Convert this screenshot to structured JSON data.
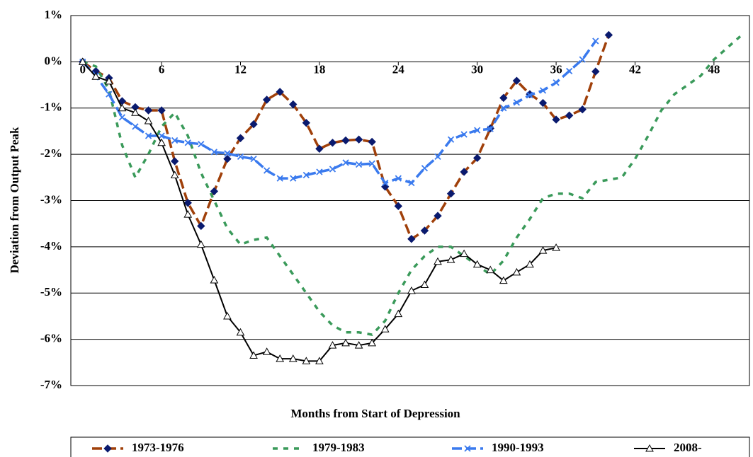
{
  "chart_data": {
    "type": "line",
    "xlabel": "Months from Start of Depression",
    "ylabel": "Deviation from Output Peak",
    "x": [
      0,
      1,
      2,
      3,
      4,
      5,
      6,
      7,
      8,
      9,
      10,
      11,
      12,
      13,
      14,
      15,
      16,
      17,
      18,
      19,
      20,
      21,
      22,
      23,
      24,
      25,
      26,
      27,
      28,
      29,
      30,
      31,
      32,
      33,
      34,
      35,
      36,
      37,
      38,
      39,
      40,
      41,
      42,
      43,
      44,
      45,
      46,
      47,
      48,
      49,
      50
    ],
    "xlim": [
      -0.9,
      50.7
    ],
    "xticks": [
      0,
      6,
      12,
      18,
      24,
      30,
      36,
      42,
      48
    ],
    "ylim": [
      -7,
      1
    ],
    "yticks": [
      {
        "value": 1,
        "label": "1%"
      },
      {
        "value": 0,
        "label": "0%"
      },
      {
        "value": -1,
        "label": "-1%"
      },
      {
        "value": -2,
        "label": "-2%"
      },
      {
        "value": -3,
        "label": "-3%"
      },
      {
        "value": -4,
        "label": "-4%"
      },
      {
        "value": -5,
        "label": "-5%"
      },
      {
        "value": -6,
        "label": "-6%"
      },
      {
        "value": -7,
        "label": "-7%"
      }
    ],
    "grid": true,
    "legend": "bottom",
    "series": [
      {
        "name": "1973-1976",
        "color": "#a0400a",
        "marker_color": "#0a1a6e",
        "style": "dashed",
        "marker": "diamond",
        "values": [
          0,
          -0.2,
          -0.35,
          -0.85,
          -0.98,
          -1.05,
          -1.05,
          -2.15,
          -3.05,
          -3.55,
          -2.8,
          -2.1,
          -1.65,
          -1.35,
          -0.82,
          -0.65,
          -0.92,
          -1.32,
          -1.88,
          -1.75,
          -1.7,
          -1.68,
          -1.73,
          -2.7,
          -3.12,
          -3.83,
          -3.65,
          -3.33,
          -2.85,
          -2.38,
          -2.08,
          -1.44,
          -0.78,
          -0.41,
          -0.7,
          -0.89,
          -1.25,
          -1.16,
          -1.03,
          -0.21,
          0.58,
          null,
          null,
          null,
          null,
          null,
          null,
          null,
          null,
          null,
          null
        ]
      },
      {
        "name": "1979-1983",
        "color": "#3a9a5a",
        "style": "dotted",
        "marker": "none",
        "values": [
          0,
          -0.1,
          -0.6,
          -1.8,
          -2.5,
          -2.0,
          -1.4,
          -1.1,
          -1.6,
          -2.4,
          -3.0,
          -3.6,
          -3.95,
          -3.85,
          -3.8,
          -4.2,
          -4.6,
          -5.0,
          -5.4,
          -5.7,
          -5.85,
          -5.85,
          -5.9,
          -5.6,
          -5.0,
          -4.5,
          -4.2,
          -4.0,
          -4.0,
          -4.2,
          -4.4,
          -4.6,
          -4.3,
          -3.8,
          -3.4,
          -2.95,
          -2.85,
          -2.85,
          -2.95,
          -2.6,
          -2.55,
          -2.5,
          -2.1,
          -1.6,
          -1.05,
          -0.7,
          -0.5,
          -0.3,
          0.05,
          0.3,
          0.55
        ]
      },
      {
        "name": "1990-1993",
        "color": "#3a7aee",
        "marker_color": "#3a7aee",
        "style": "dashed",
        "marker": "cross",
        "values": [
          0,
          -0.3,
          -0.7,
          -1.2,
          -1.4,
          -1.6,
          -1.6,
          -1.7,
          -1.75,
          -1.78,
          -1.95,
          -1.98,
          -2.05,
          -2.1,
          -2.35,
          -2.52,
          -2.52,
          -2.45,
          -2.38,
          -2.32,
          -2.18,
          -2.22,
          -2.2,
          -2.62,
          -2.52,
          -2.62,
          -2.3,
          -2.05,
          -1.68,
          -1.57,
          -1.48,
          -1.45,
          -1.0,
          -0.88,
          -0.72,
          -0.62,
          -0.45,
          -0.2,
          0.05,
          0.45,
          null,
          null,
          null,
          null,
          null,
          null,
          null,
          null,
          null,
          null,
          null
        ]
      },
      {
        "name": "2008-",
        "color": "#000000",
        "marker_color": "#000000",
        "style": "solid",
        "marker": "triangle",
        "values": [
          0,
          -0.32,
          -0.42,
          -1.0,
          -1.1,
          -1.28,
          -1.75,
          -2.45,
          -3.3,
          -3.95,
          -4.72,
          -5.5,
          -5.85,
          -6.35,
          -6.27,
          -6.42,
          -6.42,
          -6.47,
          -6.47,
          -6.13,
          -6.08,
          -6.13,
          -6.08,
          -5.78,
          -5.45,
          -4.95,
          -4.82,
          -4.32,
          -4.28,
          -4.15,
          -4.38,
          -4.5,
          -4.73,
          -4.55,
          -4.38,
          -4.08,
          -4.02,
          null,
          null,
          null,
          null,
          null,
          null,
          null,
          null,
          null,
          null,
          null,
          null,
          null,
          null
        ]
      }
    ]
  }
}
